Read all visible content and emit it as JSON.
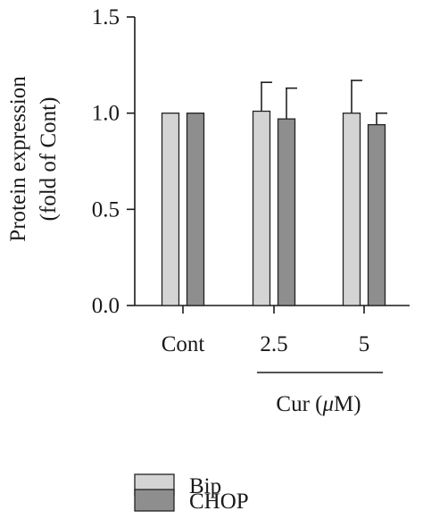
{
  "chart_data": {
    "type": "bar",
    "ylabel_line1": "Protein expression",
    "ylabel_line2": "(fold of Cont)",
    "ylim": [
      0,
      1.5
    ],
    "yticks": [
      "0.0",
      "0.5",
      "1.0",
      "1.5"
    ],
    "categories": [
      "Cont",
      "2.5",
      "5"
    ],
    "group_label": "Cur (μM)",
    "group_label_parts": [
      "Cur (",
      "μ",
      "M)"
    ],
    "legend_placement": "bottom-left",
    "series": [
      {
        "name": "Bip",
        "color": "#d4d4d4",
        "values": [
          1.0,
          1.01,
          1.0
        ],
        "errors": [
          0,
          0.15,
          0.17
        ]
      },
      {
        "name": "CHOP",
        "color": "#8e8e8e",
        "values": [
          1.0,
          0.97,
          0.94
        ],
        "errors": [
          0,
          0.16,
          0.06
        ]
      }
    ]
  }
}
